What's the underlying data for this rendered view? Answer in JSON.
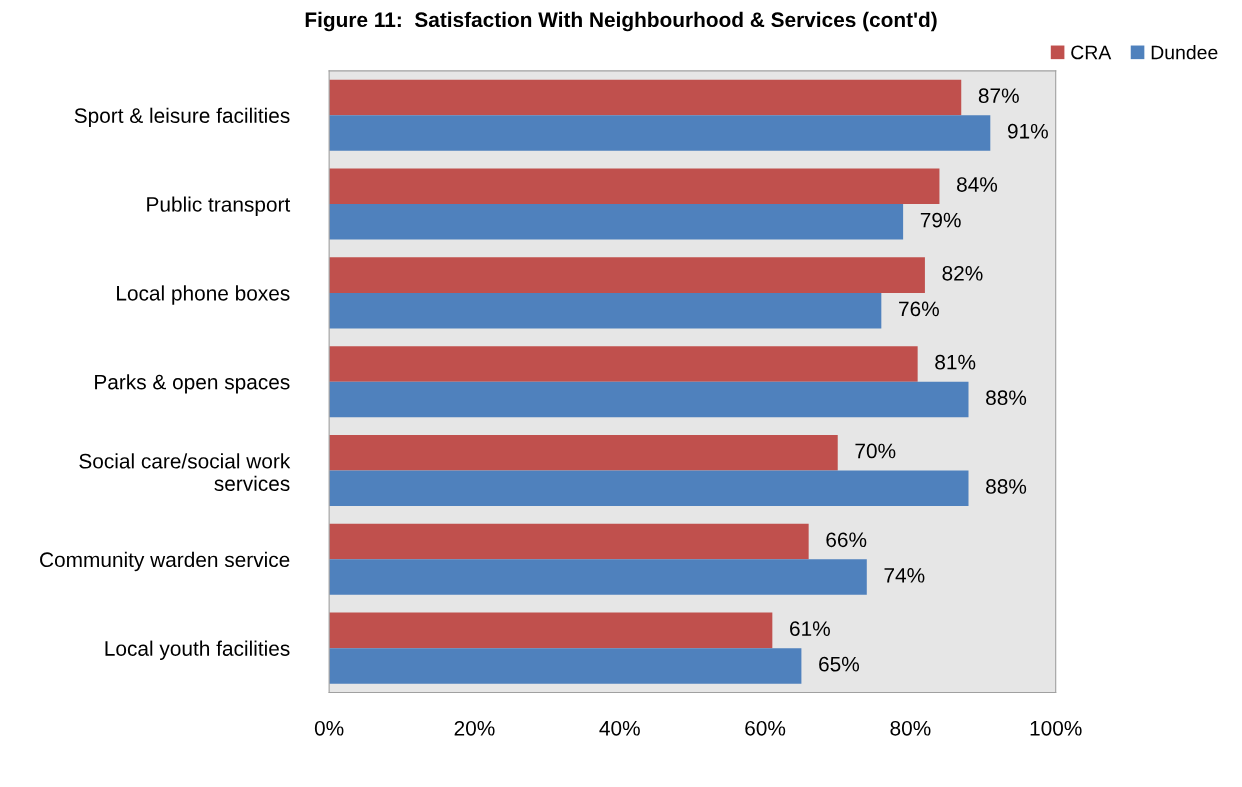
{
  "chart_data": {
    "type": "bar",
    "orientation": "horizontal",
    "title": "Figure 11:  Satisfaction With Neighbourhood & Services (cont'd)",
    "categories": [
      "Sport & leisure facilities",
      "Public transport",
      "Local phone boxes",
      "Parks & open spaces",
      "Social care/social work\nservices",
      "Community warden service",
      "Local youth facilities"
    ],
    "series": [
      {
        "name": "CRA",
        "color": "#c0504d",
        "values": [
          87,
          84,
          82,
          81,
          70,
          66,
          61
        ],
        "value_labels": [
          "87%",
          "84%",
          "82%",
          "81%",
          "70%",
          "66%",
          "61%"
        ]
      },
      {
        "name": "Dundee",
        "color": "#4f81bd",
        "values": [
          91,
          79,
          76,
          88,
          88,
          74,
          65
        ],
        "value_labels": [
          "91%",
          "79%",
          "76%",
          "88%",
          "88%",
          "74%",
          "65%"
        ]
      }
    ],
    "xlim": [
      0,
      100
    ],
    "xticks": [
      {
        "value": 0,
        "label": "0%"
      },
      {
        "value": 20,
        "label": "20%"
      },
      {
        "value": 40,
        "label": "40%"
      },
      {
        "value": 60,
        "label": "60%"
      },
      {
        "value": 80,
        "label": "80%"
      },
      {
        "value": 100,
        "label": "100%"
      }
    ],
    "grid": false,
    "legend": "top right"
  }
}
